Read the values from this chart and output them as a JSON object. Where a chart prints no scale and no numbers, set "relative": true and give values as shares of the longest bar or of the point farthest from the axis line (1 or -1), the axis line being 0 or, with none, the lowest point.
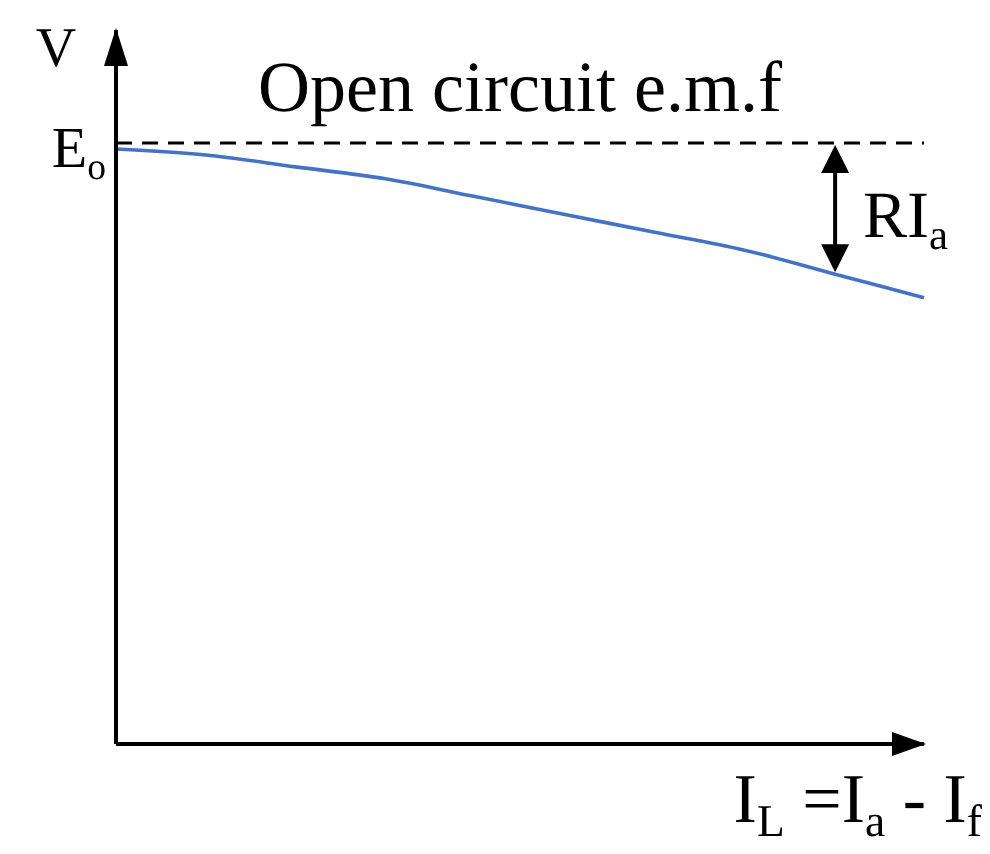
{
  "chart_data": {
    "type": "line",
    "relative": true,
    "ylabel": "V",
    "xlabel": "I$_{L}$ =I$_{a}$ - I$_{f}$",
    "categories": [
      null,
      null,
      null,
      null,
      null,
      null,
      null,
      null,
      null,
      null
    ],
    "series": [
      {
        "color": "#4472c4",
        "values": [
          1,
          0.99,
          0.97,
          0.95,
          0.92,
          0.89,
          0.86,
          0.83,
          0.79,
          0.75
        ]
      }
    ],
    "ref_lines": [
      {
        "axis": "y",
        "value": 1.01,
        "label": "Open circuit e.m.f",
        "color": "#000000",
        "line_style": "dashed"
      }
    ],
    "annotations": [
      "E$_{o}$",
      "RI$_{a}$"
    ],
    "marker": "none",
    "line_style": "solid"
  }
}
